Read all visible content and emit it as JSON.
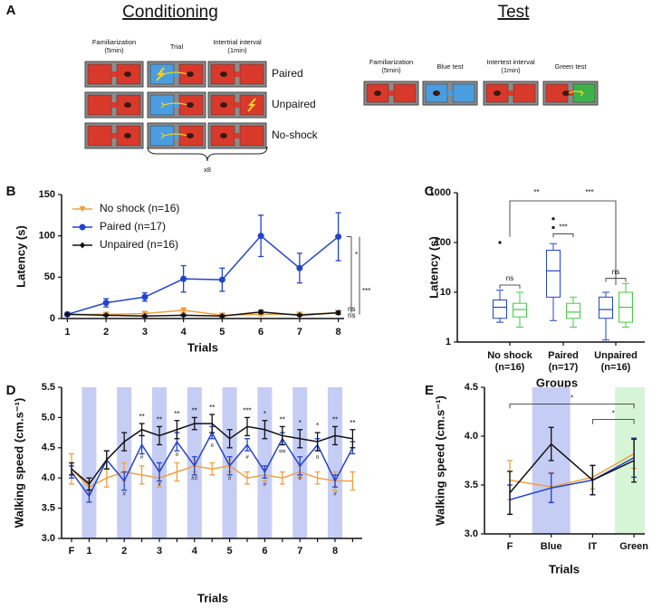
{
  "diagram": {
    "label": "A",
    "conditioning": {
      "title": "Conditioning",
      "columns": [
        "Familiarization (5min)",
        "Trial",
        "Intertrial interval (1min)"
      ],
      "rows": [
        "Paired",
        "Unpaired",
        "No-shock"
      ],
      "repeat": "x8"
    },
    "test": {
      "title": "Test",
      "columns": [
        "Familiarization (5min)",
        "Blue test",
        "Intertest interval (1min)",
        "Green test"
      ]
    }
  },
  "chart_data": [
    {
      "type": "line",
      "label": "B",
      "x_label": "Trials",
      "y_label": "Latency (s)",
      "x": [
        1,
        2,
        3,
        4,
        5,
        6,
        7,
        8
      ],
      "xlim": [
        0.85,
        8.15
      ],
      "xticks": [
        1,
        2,
        3,
        4,
        5,
        6,
        7,
        8
      ],
      "ylim": [
        0,
        150
      ],
      "yticks": [
        0,
        50,
        100,
        150
      ],
      "legend": "upper left",
      "series": [
        {
          "name": "No shock (n=16)",
          "color": "#f0a040",
          "marker": "triangle",
          "values": [
            5,
            5,
            6,
            10,
            4,
            5,
            5,
            7
          ],
          "errors": [
            1.5,
            2,
            2,
            3,
            1.5,
            1.5,
            1,
            2
          ]
        },
        {
          "name": "Paired (n=17)",
          "color": "#2244cc",
          "marker": "circle",
          "values": [
            5,
            19,
            26,
            48,
            47,
            100,
            61,
            99
          ],
          "errors": [
            2,
            5,
            5,
            16,
            14,
            25,
            18,
            29
          ]
        },
        {
          "name": "Unpaired (n=16)",
          "color": "#111111",
          "marker": "diamond",
          "values": [
            5,
            4,
            3,
            4,
            3,
            8,
            4,
            7
          ],
          "errors": [
            1,
            1,
            1,
            1,
            1,
            2,
            1,
            2
          ]
        }
      ],
      "annotations": [
        "*",
        "***",
        "ns",
        "ns"
      ]
    },
    {
      "type": "box",
      "label": "C",
      "x_label": "Groups",
      "y_label": "Latency (s)",
      "log": true,
      "categories": [
        "No shock (n=16)",
        "Paired (n=17)",
        "Unpaired (n=16)"
      ],
      "ylim": [
        1,
        1000
      ],
      "yticks": [
        1,
        10,
        100,
        1000
      ],
      "series": [
        {
          "color": "#2244cc",
          "values": [
            {
              "min": 2.5,
              "q1": 3,
              "median": 5,
              "q3": 7,
              "max": 11,
              "outliers": [
                100
              ]
            },
            {
              "min": 2.7,
              "q1": 8,
              "median": 27,
              "q3": 70,
              "max": 95,
              "outliers": [
                300,
                200
              ]
            },
            {
              "min": 1.1,
              "q1": 3,
              "median": 4.5,
              "q3": 8,
              "max": 10,
              "outliers": []
            }
          ]
        },
        {
          "color": "#44cc44",
          "values": [
            {
              "min": 2,
              "q1": 3.2,
              "median": 4.5,
              "q3": 6,
              "max": 10,
              "outliers": []
            },
            {
              "min": 2,
              "q1": 3,
              "median": 4,
              "q3": 6,
              "max": 8,
              "outliers": []
            },
            {
              "min": 2,
              "q1": 2.5,
              "median": 5,
              "q3": 10,
              "max": 15,
              "outliers": []
            }
          ]
        }
      ],
      "annotations": [
        "ns",
        "**",
        "***",
        "***",
        "ns"
      ]
    },
    {
      "type": "line",
      "label": "D",
      "x_label": "Trials",
      "y_label": "Walking speed (cm.s⁻¹)",
      "categories": [
        "F",
        "1",
        null,
        "2",
        null,
        "3",
        null,
        "4",
        null,
        "5",
        null,
        "6",
        null,
        "7",
        null,
        "8",
        null
      ],
      "band_colors": [
        null,
        "#c5cdf5",
        null,
        "#c5cdf5",
        null,
        "#c5cdf5",
        null,
        "#c5cdf5",
        null,
        "#c5cdf5",
        null,
        "#c5cdf5",
        null,
        "#c5cdf5",
        null,
        "#c5cdf5",
        null
      ],
      "ylim": [
        3,
        5.5
      ],
      "yticks": [
        {
          "value": 3,
          "label": "3.0"
        },
        3.5,
        {
          "value": 4,
          "label": "4.0"
        },
        4.5,
        {
          "value": 5,
          "label": "5.0"
        },
        5.5
      ],
      "series": [
        {
          "color": "#f0a040",
          "values": [
            4.15,
            3.85,
            4.0,
            4.1,
            4.05,
            4.0,
            4.1,
            4.2,
            4.15,
            4.2,
            4.0,
            4.05,
            4.0,
            4.1,
            4.0,
            3.95,
            3.95
          ],
          "errors": [
            0.25,
            0.1,
            0.15,
            0.15,
            0.15,
            0.15,
            0.15,
            0.1,
            0.1,
            0.1,
            0.1,
            0.1,
            0.1,
            0.1,
            0.1,
            0.15,
            0.15
          ]
        },
        {
          "color": "#2244cc",
          "values": [
            4.1,
            3.7,
            4.3,
            3.95,
            4.55,
            4.1,
            4.6,
            4.2,
            4.75,
            4.2,
            4.55,
            4.1,
            4.65,
            4.2,
            4.55,
            3.95,
            4.5
          ],
          "errors": [
            0.1,
            0.1,
            0.15,
            0.15,
            0.15,
            0.15,
            0.15,
            0.15,
            0.1,
            0.15,
            0.1,
            0.1,
            0.1,
            0.15,
            0.1,
            0.1,
            0.1
          ]
        },
        {
          "color": "#111111",
          "values": [
            4.15,
            3.9,
            4.3,
            4.6,
            4.8,
            4.7,
            4.8,
            4.9,
            4.9,
            4.65,
            4.85,
            4.8,
            4.7,
            4.65,
            4.6,
            4.7,
            4.65
          ],
          "errors": [
            0.1,
            0.1,
            0.15,
            0.15,
            0.1,
            0.15,
            0.15,
            0.1,
            0.15,
            0.15,
            0.15,
            0.15,
            0.15,
            0.15,
            0.15,
            0.15,
            0.15
          ]
        }
      ],
      "stars": [
        null,
        null,
        null,
        null,
        "**",
        "**",
        "**",
        "**",
        "**",
        null,
        "***",
        "*",
        "**",
        "*",
        "*",
        "**",
        "**"
      ],
      "sharps": [
        null,
        null,
        null,
        "#",
        "#",
        "#",
        "¤",
        "##",
        "¤",
        "#",
        "#",
        "#",
        "¤¤",
        "#",
        "¤",
        "#",
        null
      ]
    },
    {
      "type": "line",
      "label": "E",
      "x_label": "Trials",
      "y_label": "Walking speed (cm.s⁻¹)",
      "categories": [
        "F",
        "Blue",
        "IT",
        "Green"
      ],
      "band_colors": [
        null,
        "#c5cdf5",
        null,
        "#d6f5d6"
      ],
      "ylim": [
        3,
        4.5
      ],
      "yticks": [
        {
          "value": 3,
          "label": "3.0"
        },
        3.5,
        {
          "value": 4,
          "label": "4.0"
        },
        4.5
      ],
      "series": [
        {
          "color": "#f0a040",
          "values": [
            3.55,
            3.48,
            3.58,
            3.82
          ],
          "errors": [
            0.2,
            0.15,
            0.12,
            0.15
          ]
        },
        {
          "color": "#2244cc",
          "values": [
            3.35,
            3.47,
            3.55,
            3.78
          ],
          "errors": [
            0.15,
            0.15,
            0.15,
            0.2
          ]
        },
        {
          "color": "#111111",
          "values": [
            3.42,
            3.92,
            3.55,
            3.75
          ],
          "errors": [
            0.22,
            0.17,
            0.15,
            0.22
          ]
        }
      ],
      "annotations": [
        "*",
        "*"
      ]
    }
  ]
}
